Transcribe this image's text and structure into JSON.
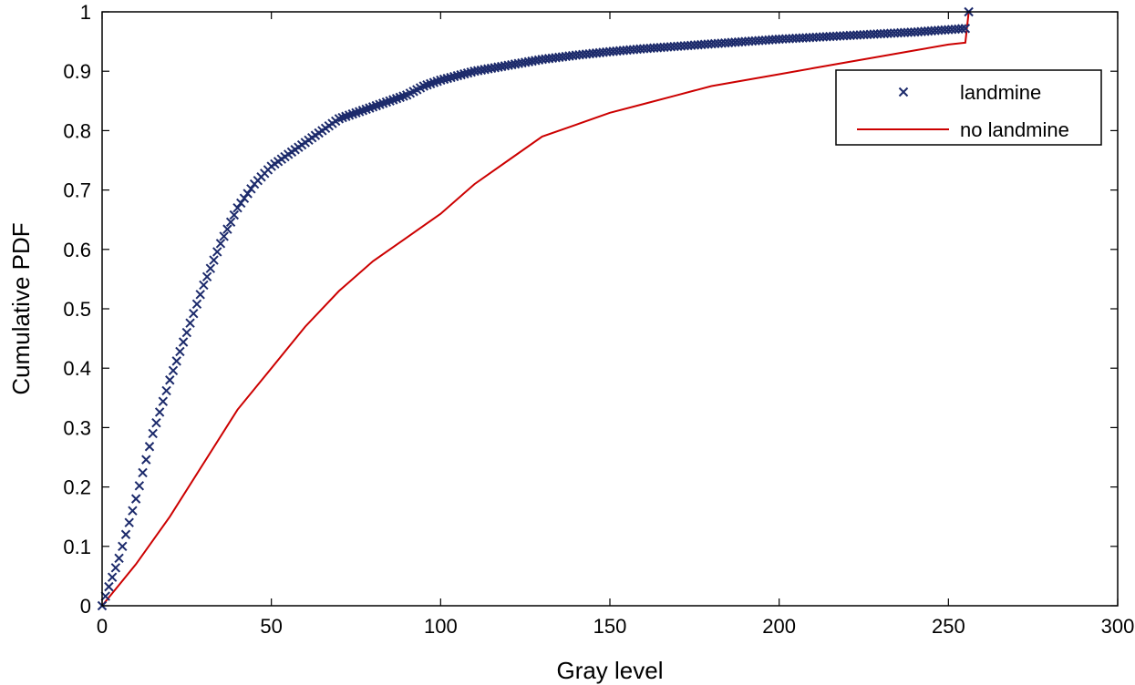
{
  "chart_data": {
    "type": "line",
    "title": "",
    "xlabel": "Gray level",
    "ylabel": "Cumulative PDF",
    "xlim": [
      0,
      300
    ],
    "ylim": [
      0,
      1
    ],
    "xticks": [
      0,
      50,
      100,
      150,
      200,
      250,
      300
    ],
    "yticks": [
      0,
      0.1,
      0.2,
      0.3,
      0.4,
      0.5,
      0.6,
      0.7,
      0.8,
      0.9,
      1
    ],
    "xtick_labels": [
      "0",
      "50",
      "100",
      "150",
      "200",
      "250",
      "300"
    ],
    "ytick_labels": [
      "0",
      "0.1",
      "0.2",
      "0.3",
      "0.4",
      "0.5",
      "0.6",
      "0.7",
      "0.8",
      "0.9",
      "1"
    ],
    "grid": false,
    "legend_position": "top-right",
    "series": [
      {
        "name": "landmine",
        "style": "markers-x",
        "color": "#1c2a6b",
        "x": [
          0,
          5,
          10,
          15,
          20,
          25,
          30,
          35,
          40,
          45,
          50,
          55,
          60,
          65,
          70,
          75,
          80,
          85,
          90,
          95,
          100,
          110,
          120,
          130,
          140,
          150,
          160,
          170,
          180,
          190,
          200,
          210,
          220,
          230,
          240,
          250,
          255,
          256
        ],
        "y": [
          0,
          0.08,
          0.18,
          0.29,
          0.38,
          0.46,
          0.54,
          0.61,
          0.67,
          0.71,
          0.74,
          0.76,
          0.78,
          0.8,
          0.82,
          0.83,
          0.84,
          0.85,
          0.86,
          0.875,
          0.885,
          0.9,
          0.91,
          0.92,
          0.927,
          0.933,
          0.938,
          0.942,
          0.946,
          0.95,
          0.954,
          0.957,
          0.96,
          0.963,
          0.966,
          0.97,
          0.972,
          1.0
        ]
      },
      {
        "name": "no landmine",
        "style": "line",
        "color": "#cc0000",
        "x": [
          0,
          10,
          20,
          30,
          40,
          50,
          60,
          70,
          80,
          90,
          100,
          110,
          120,
          130,
          140,
          150,
          160,
          170,
          180,
          190,
          200,
          210,
          220,
          230,
          240,
          250,
          255,
          256
        ],
        "y": [
          0,
          0.07,
          0.15,
          0.24,
          0.33,
          0.4,
          0.47,
          0.53,
          0.58,
          0.62,
          0.66,
          0.71,
          0.75,
          0.79,
          0.81,
          0.83,
          0.845,
          0.86,
          0.875,
          0.885,
          0.895,
          0.905,
          0.915,
          0.925,
          0.935,
          0.945,
          0.948,
          1.0
        ]
      }
    ]
  }
}
